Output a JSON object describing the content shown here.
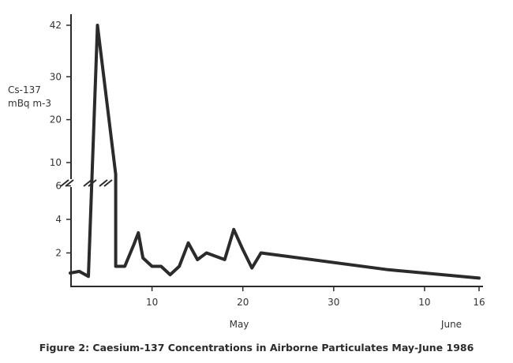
{
  "chart_data": {
    "type": "line",
    "title": "Figure 2: Caesium-137 Concentrations in Airborne Particulates May-June 1986",
    "ylabel": [
      "Cs-137",
      "mBq m-3"
    ],
    "x_month_labels": [
      "May",
      "June"
    ],
    "x_ticks": [
      {
        "day": 10,
        "label": "10"
      },
      {
        "day": 20,
        "label": "20"
      },
      {
        "day": 30,
        "label": "30"
      },
      {
        "day": 40,
        "label": "10"
      },
      {
        "day": 46,
        "label": "16"
      }
    ],
    "y_ticks": [
      {
        "value": 2,
        "label": "2"
      },
      {
        "value": 4,
        "label": "4"
      },
      {
        "value": 6,
        "label": "6"
      },
      {
        "value": 10,
        "label": "10"
      },
      {
        "value": 20,
        "label": "20"
      },
      {
        "value": 30,
        "label": "30"
      },
      {
        "value": 42,
        "label": "42"
      }
    ],
    "y_axis_break": true,
    "grid": false,
    "series": [
      {
        "values": [
          {
            "x": "May 1",
            "y": 0.8
          },
          {
            "x": "May 2",
            "y": 0.9
          },
          {
            "x": "May 3",
            "y": 0.6
          },
          {
            "x": "May 4",
            "y": 42
          },
          {
            "x": "May 6",
            "y": 8
          },
          {
            "x": "May 6",
            "y": 1.2
          },
          {
            "x": "May 7",
            "y": 1.2
          },
          {
            "x": "May 8",
            "y": 2.5
          },
          {
            "x": "May 8.5",
            "y": 3.2
          },
          {
            "x": "May 9",
            "y": 1.7
          },
          {
            "x": "May 10",
            "y": 1.2
          },
          {
            "x": "May 11",
            "y": 1.2
          },
          {
            "x": "May 12",
            "y": 0.7
          },
          {
            "x": "May 13",
            "y": 1.2
          },
          {
            "x": "May 14",
            "y": 2.6
          },
          {
            "x": "May 15",
            "y": 1.6
          },
          {
            "x": "May 16",
            "y": 2.0
          },
          {
            "x": "May 17",
            "y": 1.8
          },
          {
            "x": "May 18",
            "y": 1.6
          },
          {
            "x": "May 19",
            "y": 3.4
          },
          {
            "x": "May 20",
            "y": 2.2
          },
          {
            "x": "May 21",
            "y": 1.1
          },
          {
            "x": "May 22",
            "y": 2.0
          },
          {
            "x": "June 6",
            "y": 1.0
          },
          {
            "x": "June 16",
            "y": 0.5
          }
        ]
      }
    ]
  }
}
